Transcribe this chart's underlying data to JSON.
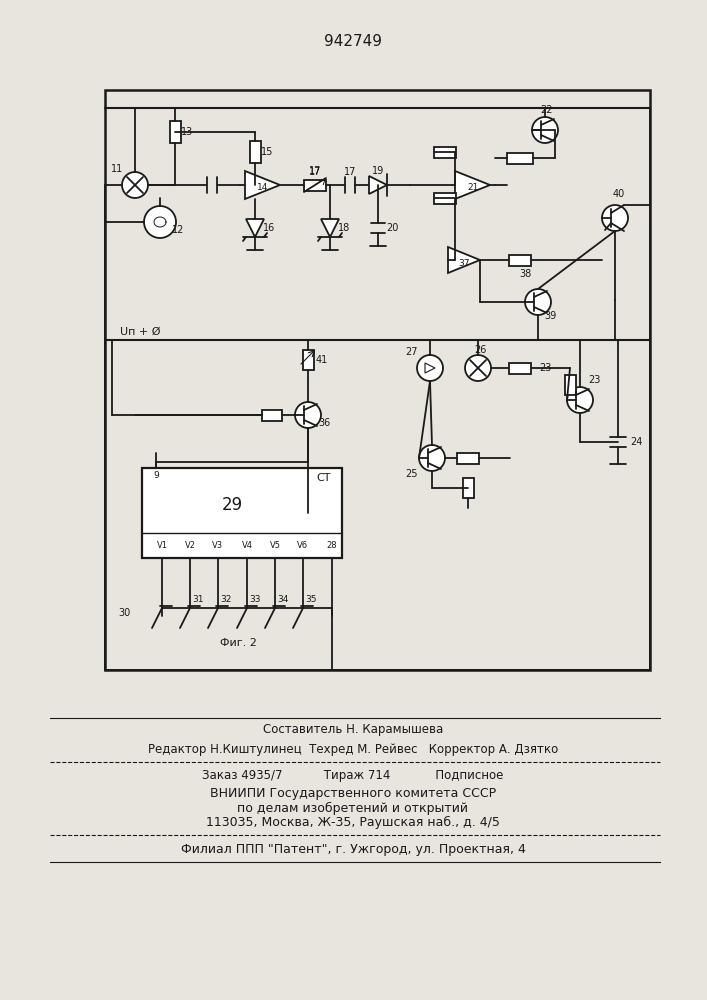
{
  "patent_number": "942749",
  "background_color": "#e8e4de",
  "line_color": "#1a1a1a",
  "title": "942749",
  "composer_line": "Составитель Н. Карамышева",
  "editor_line": "Редактор Н.Киштулинец  Техред М. Рейвес   Корректор А. Дзятко",
  "order_line": "Заказ 4935/7           Тираж 714            Подписное",
  "vniip_line": "ВНИИПИ Государственного комитета СССР",
  "affairs_line": "по делам изобретений и открытий",
  "address_line": "113035, Москва, Ж-35, Раушская наб., д. 4/5",
  "filial_line": "Филиал ППП \"Патент\", г. Ужгород, ул. Проектная, 4",
  "fig_label": "Фиг. 2",
  "un_label": "Uп + Ø"
}
